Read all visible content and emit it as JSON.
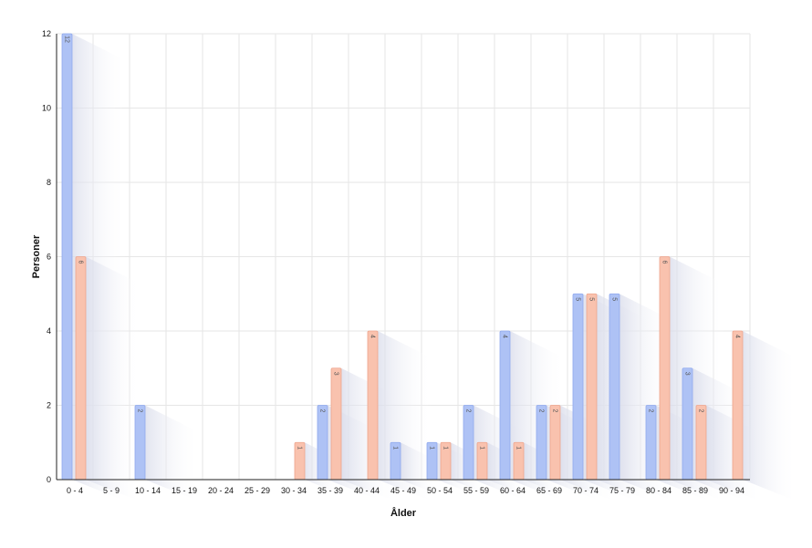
{
  "chart_data": {
    "type": "bar",
    "xlabel": "Ålder",
    "ylabel": "Personer",
    "ylim": [
      0,
      12
    ],
    "yticks": [
      0,
      2,
      4,
      6,
      8,
      10,
      12
    ],
    "grid": true,
    "legend": "none",
    "categories": [
      "0 - 4",
      "5 - 9",
      "10 - 14",
      "15 - 19",
      "20 - 24",
      "25 - 29",
      "30 - 34",
      "35 - 39",
      "40 - 44",
      "45 - 49",
      "50 - 54",
      "55 - 59",
      "60 - 64",
      "65 - 69",
      "70 - 74",
      "75 - 79",
      "80 - 84",
      "85 - 89",
      "90 - 94"
    ],
    "series": [
      {
        "color": "#aec2f5",
        "border": "#8fa9ee",
        "values": [
          12,
          0,
          2,
          0,
          0,
          0,
          0,
          2,
          0,
          1,
          1,
          2,
          4,
          2,
          5,
          5,
          2,
          3,
          0
        ]
      },
      {
        "color": "#f9c2ae",
        "border": "#eea58d",
        "values": [
          6,
          0,
          0,
          0,
          0,
          0,
          1,
          3,
          4,
          0,
          1,
          1,
          1,
          2,
          5,
          0,
          6,
          2,
          4
        ]
      }
    ]
  }
}
